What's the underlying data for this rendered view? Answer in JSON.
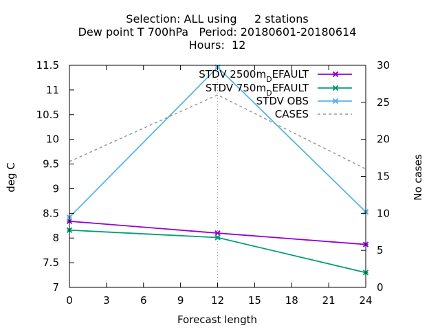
{
  "chart_data": {
    "type": "line",
    "title_lines": [
      "Selection: ALL using     2 stations",
      "Dew point T 700hPa   Period: 20180601-20180614",
      "Hours:  12"
    ],
    "xlabel": "Forecast length",
    "ylabel": "deg C",
    "y2label": "No cases",
    "x": [
      0,
      12,
      24
    ],
    "xlim": [
      0,
      24
    ],
    "xticks": [
      0,
      3,
      6,
      9,
      12,
      15,
      18,
      21,
      24
    ],
    "ylim": [
      7,
      11.5
    ],
    "yticks": [
      7,
      7.5,
      8,
      8.5,
      9,
      9.5,
      10,
      10.5,
      11,
      11.5
    ],
    "y2lim": [
      0,
      30
    ],
    "y2ticks": [
      0,
      5,
      10,
      15,
      20,
      25,
      30
    ],
    "grid": "vertical line at 12 only",
    "legend_position": "top-right",
    "series": [
      {
        "name_main": "STDV 2500m",
        "name_sub": "D",
        "name_rest": "EFAULT",
        "axis": "y1",
        "values": [
          8.34,
          8.1,
          7.87
        ],
        "color": "#9400d3",
        "marker": "x"
      },
      {
        "name_main": "STDV 750m",
        "name_sub": "D",
        "name_rest": "EFAULT",
        "axis": "y1",
        "values": [
          8.16,
          8.01,
          7.3
        ],
        "color": "#009e73",
        "marker": "x"
      },
      {
        "name_main": "STDV OBS",
        "axis": "y1",
        "values": [
          8.42,
          11.46,
          8.53
        ],
        "color": "#56b4e9",
        "marker": "x"
      },
      {
        "name_main": "CASES",
        "axis": "y2",
        "values": [
          17,
          26,
          16
        ],
        "color": "#999999",
        "dashed": true
      }
    ]
  }
}
